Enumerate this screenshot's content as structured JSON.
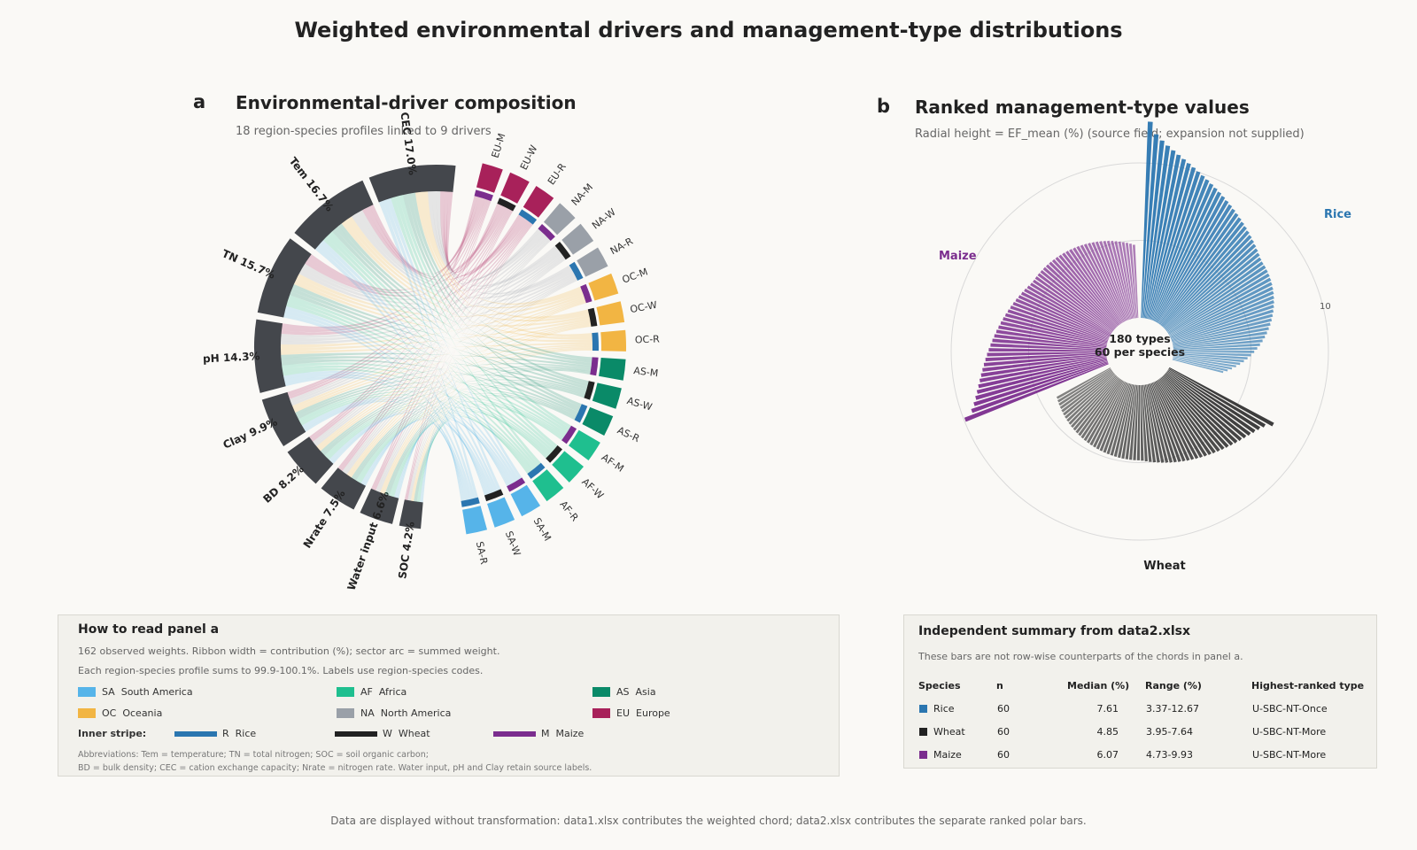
{
  "figure": {
    "title": "Weighted environmental drivers and management-type distributions",
    "footer": "Data are displayed without transformation: data1.xlsx contributes the weighted chord; data2.xlsx contributes the separate ranked polar bars."
  },
  "panel_a": {
    "letter": "a",
    "title": "Environmental-driver composition",
    "subtitle": "18 region-species profiles linked to 9 drivers"
  },
  "panel_b": {
    "letter": "b",
    "title": "Ranked management-type values",
    "subtitle": "Radial height = EF_mean (%) (source field; expansion not supplied)",
    "center_line1": "180 types",
    "center_line2": "60 per species",
    "ring_label": "10"
  },
  "legend_a": {
    "title": "How to read panel a",
    "line1": "162 observed weights. Ribbon width = contribution (%); sector arc = summed weight.",
    "line2": "Each region-species profile sums to 99.9-100.1%. Labels use region-species codes.",
    "regions": [
      {
        "code": "SA",
        "name": "South America",
        "color": "#56b4e9"
      },
      {
        "code": "AF",
        "name": "Africa",
        "color": "#1fbf8f"
      },
      {
        "code": "AS",
        "name": "Asia",
        "color": "#0a8a68"
      },
      {
        "code": "OC",
        "name": "Oceania",
        "color": "#f2b543"
      },
      {
        "code": "NA",
        "name": "North America",
        "color": "#9aa0a8"
      },
      {
        "code": "EU",
        "name": "Europe",
        "color": "#a8215a"
      }
    ],
    "stripe_label": "Inner stripe:",
    "stripes": [
      {
        "code": "R",
        "name": "Rice",
        "color": "#2b76b0"
      },
      {
        "code": "W",
        "name": "Wheat",
        "color": "#222222"
      },
      {
        "code": "M",
        "name": "Maize",
        "color": "#7b2d8e"
      }
    ],
    "abbr1": "Abbreviations: Tem = temperature; TN = total nitrogen; SOC = soil organic carbon;",
    "abbr2": "BD = bulk density; CEC = cation exchange capacity; Nrate = nitrogen rate. Water input, pH and Clay retain source labels."
  },
  "summary_b": {
    "title": "Independent summary from data2.xlsx",
    "note": "These bars are not row-wise counterparts of the chords in panel a.",
    "headers": [
      "Species",
      "n",
      "Median (%)",
      "Range (%)",
      "Highest-ranked type"
    ],
    "rows": [
      {
        "species": "Rice",
        "n": "60",
        "median": "7.61",
        "range": "3.37-12.67",
        "top": "U-SBC-NT-Once",
        "color": "#2b76b0"
      },
      {
        "species": "Wheat",
        "n": "60",
        "median": "4.85",
        "range": "3.95-7.64",
        "top": "U-SBC-NT-More",
        "color": "#222222"
      },
      {
        "species": "Maize",
        "n": "60",
        "median": "6.07",
        "range": "4.73-9.93",
        "top": "U-SBC-NT-More",
        "color": "#7b2d8e"
      }
    ]
  },
  "chart_data": [
    {
      "type": "chord",
      "drivers": [
        {
          "name": "CEC",
          "value": 17.0,
          "label": "17.0%"
        },
        {
          "name": "Tem",
          "value": 16.7,
          "label": "16.7%"
        },
        {
          "name": "TN",
          "value": 15.7,
          "label": "15.7%"
        },
        {
          "name": "pH",
          "value": 14.3,
          "label": "14.3%"
        },
        {
          "name": "Clay",
          "value": 9.9,
          "label": "9.9%"
        },
        {
          "name": "BD",
          "value": 8.2,
          "label": "8.2%"
        },
        {
          "name": "Nrate",
          "value": 7.5,
          "label": "7.5%"
        },
        {
          "name": "Water input",
          "value": 6.6,
          "label": "6.6%"
        },
        {
          "name": "SOC",
          "value": 4.2,
          "label": "4.2%"
        }
      ],
      "profiles": [
        "EU-M",
        "EU-W",
        "EU-R",
        "NA-M",
        "NA-W",
        "NA-R",
        "OC-M",
        "OC-W",
        "OC-R",
        "AS-M",
        "AS-W",
        "AS-R",
        "AF-M",
        "AF-W",
        "AF-R",
        "SA-M",
        "SA-W",
        "SA-R"
      ],
      "region_colors": {
        "EU": "#a8215a",
        "NA": "#9aa0a8",
        "OC": "#f2b543",
        "AS": "#0a8a68",
        "AF": "#1fbf8f",
        "SA": "#56b4e9"
      },
      "species_colors": {
        "R": "#2b76b0",
        "W": "#222222",
        "M": "#7b2d8e"
      },
      "driver_color": "#44474c"
    },
    {
      "type": "polar-bar",
      "series": [
        {
          "name": "Rice",
          "n": 60,
          "min": 3.37,
          "median": 7.61,
          "max": 12.67,
          "color": "#2b76b0"
        },
        {
          "name": "Wheat",
          "n": 60,
          "min": 3.95,
          "median": 4.85,
          "max": 7.64,
          "color": "#333333"
        },
        {
          "name": "Maize",
          "n": 60,
          "min": 4.73,
          "median": 6.07,
          "max": 9.93,
          "color": "#7b2d8e"
        }
      ],
      "rings": [
        5,
        10
      ]
    }
  ]
}
